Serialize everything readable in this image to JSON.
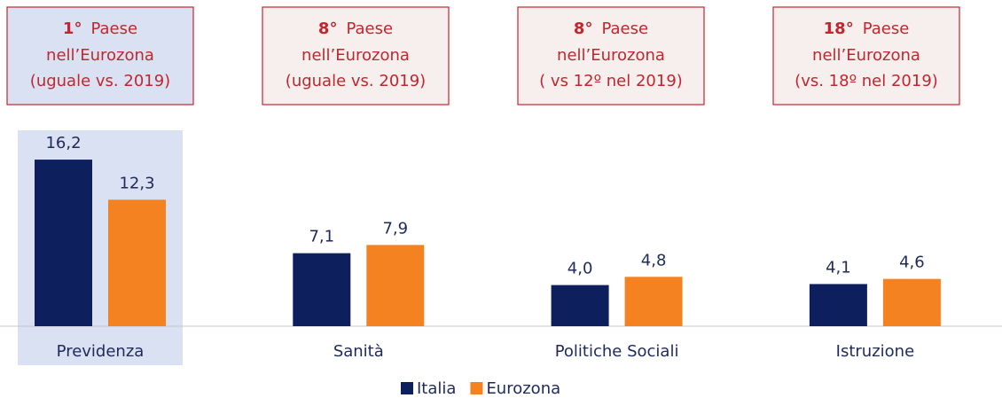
{
  "chart_data": {
    "type": "bar",
    "categories": [
      "Previdenza",
      "Sanità",
      "Politiche Sociali",
      "Istruzione"
    ],
    "series": [
      {
        "name": "Italia",
        "color": "#0d1f5c",
        "values": [
          16.2,
          7.1,
          4.0,
          4.1
        ],
        "value_labels": [
          "16,2",
          "7,1",
          "4,0",
          "4,1"
        ]
      },
      {
        "name": "Eurozona",
        "color": "#f58220",
        "values": [
          12.3,
          7.9,
          4.8,
          4.6
        ],
        "value_labels": [
          "12,3",
          "7,9",
          "4,8",
          "4,6"
        ]
      }
    ],
    "ylim": [
      0,
      20
    ],
    "highlight_color": "#d9e1f2",
    "annotations": [
      {
        "rank": "1°",
        "text": "Paese",
        "lines": [
          "nell’Eurozona",
          "(uguale vs. 2019)"
        ]
      },
      {
        "rank": "8°",
        "text": "Paese",
        "lines": [
          "nell’Eurozona",
          "(uguale vs. 2019)"
        ]
      },
      {
        "rank": "8°",
        "text": "Paese",
        "lines": [
          "nell’Eurozona",
          "( vs 12º nel 2019)"
        ]
      },
      {
        "rank": "18°",
        "text": "Paese",
        "lines": [
          "nell’Eurozona",
          "(vs. 18º nel 2019)"
        ]
      }
    ]
  }
}
